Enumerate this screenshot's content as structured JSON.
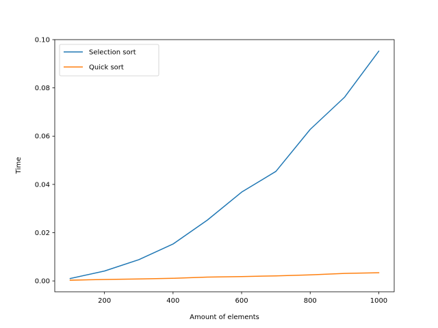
{
  "chart_data": {
    "type": "line",
    "title": "",
    "xlabel": "Amount of elements",
    "ylabel": "Time",
    "xlim": [
      55,
      1045
    ],
    "ylim": [
      -0.0045,
      0.1
    ],
    "xticks": [
      200,
      400,
      600,
      800,
      1000
    ],
    "yticks": [
      0.0,
      0.02,
      0.04,
      0.06,
      0.08,
      0.1
    ],
    "ytick_labels": [
      "0.00",
      "0.02",
      "0.04",
      "0.06",
      "0.08",
      "0.10"
    ],
    "grid": false,
    "legend_position": "top-left",
    "x": [
      100,
      200,
      300,
      400,
      500,
      600,
      700,
      800,
      900,
      1000
    ],
    "series": [
      {
        "name": "Selection sort",
        "color": "#1f77b4",
        "values": [
          0.001,
          0.0041,
          0.0088,
          0.0153,
          0.0252,
          0.0368,
          0.0454,
          0.0628,
          0.0761,
          0.0952
        ]
      },
      {
        "name": "Quick sort",
        "color": "#ff7f0e",
        "values": [
          0.0003,
          0.0006,
          0.0008,
          0.0011,
          0.0016,
          0.0018,
          0.0021,
          0.0025,
          0.0031,
          0.0034
        ]
      }
    ]
  }
}
